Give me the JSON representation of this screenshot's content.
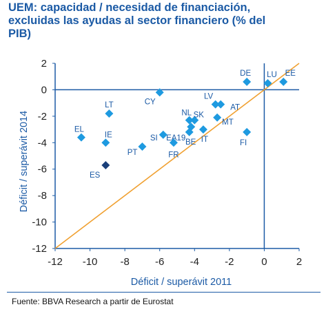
{
  "title_lines": [
    "UEM: capacidad / necesidad de financiación,",
    "excluidas las ayudas al sector financiero (% del",
    "PIB)"
  ],
  "footnote": "Fuente: BBVA Research a partir de Eurostat",
  "colors": {
    "accent": "#1b5aa5",
    "diamond": "#1e9ae0",
    "diamond_highlight": "#1a3f7a",
    "diagonal": "#f0a030"
  },
  "chart_data": {
    "type": "scatter",
    "title": "UEM: capacidad / necesidad de financiación, excluidas las ayudas al sector financiero (% del PIB)",
    "xlabel": "Déficit / superávit 2011",
    "ylabel": "Déficit / superávit 2014",
    "xlim": [
      -12,
      2
    ],
    "ylim": [
      -12,
      2
    ],
    "xticks": [
      "-12",
      "-10",
      "-8",
      "-6",
      "-4",
      "-2",
      "0",
      "2"
    ],
    "yticks": [
      "2",
      "0",
      "-2",
      "-4",
      "-6",
      "-8",
      "-10",
      "-12"
    ],
    "grid": false,
    "diagonal": "y = x",
    "points": [
      {
        "label": "DE",
        "x": -1.0,
        "y": 0.6
      },
      {
        "label": "LU",
        "x": 0.2,
        "y": 0.5
      },
      {
        "label": "EE",
        "x": 1.1,
        "y": 0.6
      },
      {
        "label": "CY",
        "x": -6.0,
        "y": -0.2
      },
      {
        "label": "LV",
        "x": -2.8,
        "y": -1.1
      },
      {
        "label": "AT",
        "x": -2.5,
        "y": -1.1
      },
      {
        "label": "LT",
        "x": -8.9,
        "y": -1.8
      },
      {
        "label": "NL",
        "x": -4.3,
        "y": -2.3
      },
      {
        "label": "SK",
        "x": -4.0,
        "y": -2.3
      },
      {
        "label": "MT",
        "x": -2.7,
        "y": -2.1
      },
      {
        "label": "EA19",
        "x": -4.2,
        "y": -2.8
      },
      {
        "label": "IT",
        "x": -3.5,
        "y": -3.0
      },
      {
        "label": "FI",
        "x": -1.0,
        "y": -3.2
      },
      {
        "label": "SI",
        "x": -5.8,
        "y": -3.4
      },
      {
        "label": "BE",
        "x": -4.3,
        "y": -3.2
      },
      {
        "label": "EL",
        "x": -10.5,
        "y": -3.6
      },
      {
        "label": "IE",
        "x": -9.1,
        "y": -4.0
      },
      {
        "label": "FR",
        "x": -5.2,
        "y": -4.0
      },
      {
        "label": "PT",
        "x": -7.0,
        "y": -4.3
      },
      {
        "label": "ES",
        "x": -9.1,
        "y": -5.7,
        "highlight": true
      }
    ]
  }
}
